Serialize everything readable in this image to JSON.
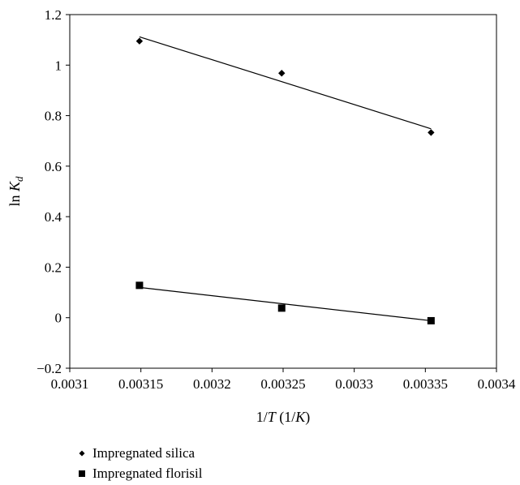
{
  "chart_data": {
    "type": "scatter",
    "xlabel": {
      "main": "1/",
      "var": "T",
      "unit": " (1/",
      "unit_var": "K",
      "close": ")"
    },
    "ylabel": {
      "main": "ln ",
      "var": "K",
      "sub": "d"
    },
    "xlim": [
      0.0031,
      0.0034
    ],
    "ylim": [
      -0.2,
      1.2
    ],
    "x_ticks": [
      "0.0031",
      "0.00315",
      "0.0032",
      "0.00325",
      "0.0033",
      "0.00335",
      "0.0034"
    ],
    "y_ticks": [
      "−0.2",
      "0",
      "0.2",
      "0.4",
      "0.6",
      "0.8",
      "1",
      "1.2"
    ],
    "grid": false,
    "legend_position": "bottom",
    "series": [
      {
        "name": "Impregnated silica",
        "marker": "diamond",
        "color": "#000000",
        "points": [
          {
            "x": 0.003149,
            "y": 1.095
          },
          {
            "x": 0.003249,
            "y": 0.968
          },
          {
            "x": 0.003354,
            "y": 0.733
          }
        ],
        "trendline": {
          "x": [
            0.003149,
            0.003354
          ],
          "y": [
            1.112,
            0.748
          ]
        }
      },
      {
        "name": "Impregnated florisil",
        "marker": "square",
        "color": "#000000",
        "points": [
          {
            "x": 0.003149,
            "y": 0.128
          },
          {
            "x": 0.003249,
            "y": 0.038
          },
          {
            "x": 0.003354,
            "y": -0.012
          }
        ],
        "trendline": {
          "x": [
            0.003149,
            0.003354
          ],
          "y": [
            0.12,
            -0.012
          ]
        }
      }
    ]
  }
}
